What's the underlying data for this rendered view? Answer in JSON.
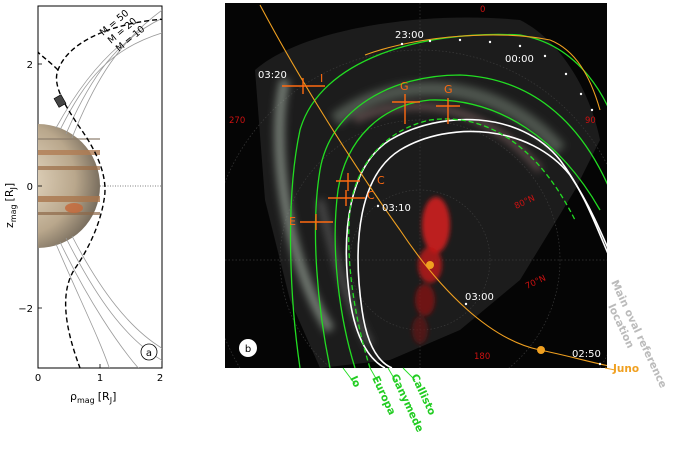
{
  "panel_a": {
    "badge": "a",
    "y_axis_label": "z",
    "y_axis_sub": "mag",
    "y_axis_unit": "[R",
    "y_axis_unit_sub": "J",
    "x_axis_label": "ρ",
    "x_axis_sub": "mag",
    "x_axis_unit": "[R",
    "x_axis_unit_sub": "J",
    "y_ticks": [
      "2",
      "0",
      "−2"
    ],
    "x_ticks": [
      "0",
      "1",
      "2"
    ],
    "field_line_labels": [
      "M = 50",
      "M = 20",
      "M = 10"
    ]
  },
  "panel_b": {
    "badge": "b",
    "longitude_labels": [
      "0",
      "270",
      "90",
      "180"
    ],
    "latitude_labels": [
      "80°N",
      "70°N"
    ],
    "time_labels": [
      "23:00",
      "00:00",
      "03:20",
      "03:10",
      "03:00",
      "02:50"
    ],
    "footprint_markers": [
      "I",
      "G",
      "G",
      "C",
      "C",
      "E"
    ],
    "legend": {
      "io": "Io",
      "europa": "Europa",
      "ganymede": "Ganymede",
      "callisto": "Callisto",
      "juno": "Juno",
      "main_oval_1": "Main oval reference",
      "main_oval_2": "location"
    },
    "colors": {
      "moon_lines": "#22dd22",
      "juno_track": "#f0a020",
      "marker": "#ff6a10",
      "main_oval": "#ffffff",
      "ref_text": "#bbbbbb",
      "lon_label": "#cc1111"
    }
  }
}
